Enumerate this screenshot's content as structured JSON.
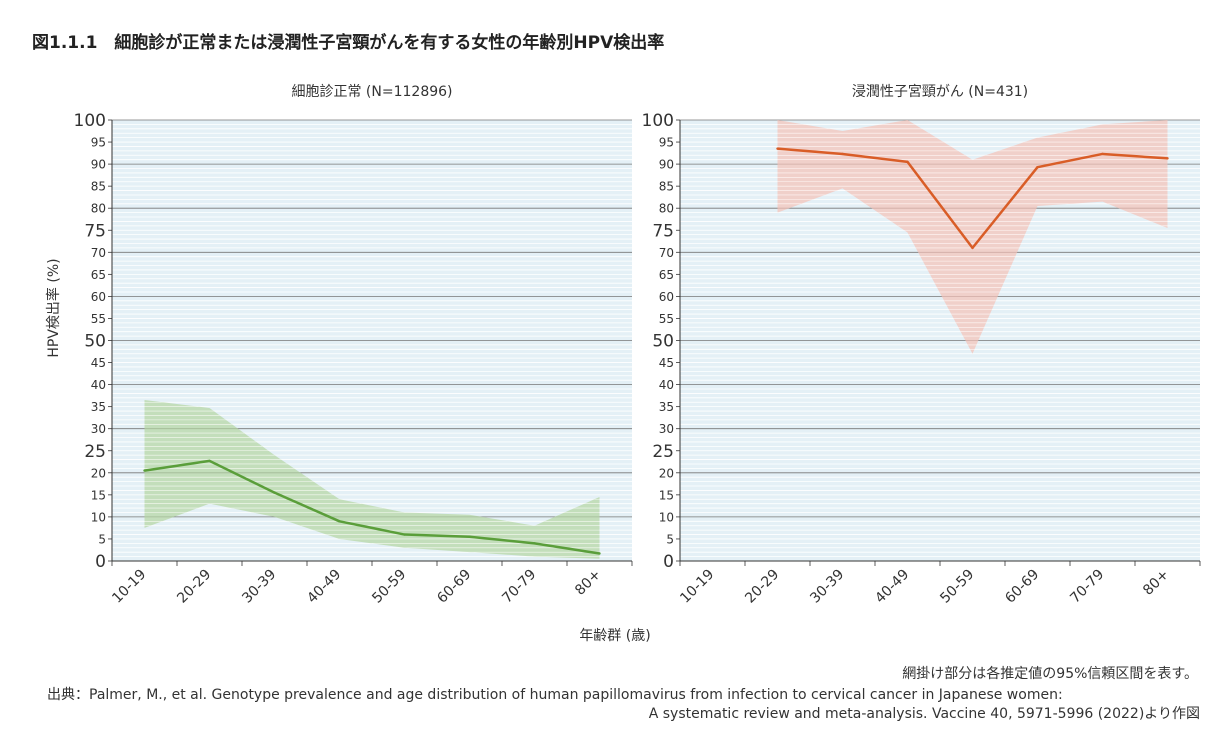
{
  "figure": {
    "title": "図1.1.1　細胞診が正常または浸潤性子宮頸がんを有する女性の年齢別HPV検出率",
    "ylabel": "HPV検出率 (%)",
    "xlabel": "年齢群 (歳)",
    "note": "網掛け部分は各推定値の95%信頼区間を表す。",
    "source_line1": "出典：Palmer, M., et al. Genotype prevalence and age distribution of human papillomavirus from infection to cervical cancer in Japanese women:",
    "source_line2": "A systematic review and meta-analysis. Vaccine 40, 5971-5996 (2022)より作図"
  },
  "colors": {
    "plot_bg": "#e4f0f6",
    "minor_grid": "#ffffff",
    "major_grid": "#777777",
    "normal_line": "#5a9e3a",
    "normal_band": "#b5d5a3",
    "cancer_line": "#d95d27",
    "cancer_band": "#f5c2b8"
  },
  "chart_data": [
    {
      "type": "line",
      "title": "細胞診正常 (N=112896)",
      "categories": [
        "10-19",
        "20-29",
        "30-39",
        "40-49",
        "50-59",
        "60-69",
        "70-79",
        "80+"
      ],
      "ylim": [
        0,
        100
      ],
      "yticks": [
        0,
        5,
        10,
        15,
        20,
        25,
        30,
        35,
        40,
        45,
        50,
        55,
        60,
        65,
        70,
        75,
        80,
        85,
        90,
        95,
        100
      ],
      "grid": true,
      "series": [
        {
          "values": [
            20.5,
            22.7,
            15.5,
            9,
            6,
            5.5,
            4,
            1.7
          ],
          "ci_lower": [
            7.5,
            13,
            10,
            5,
            3,
            2,
            1,
            0.5
          ],
          "ci_upper": [
            36.5,
            34.7,
            24,
            14,
            11,
            10.5,
            8,
            14.5
          ]
        }
      ]
    },
    {
      "type": "line",
      "title": "浸潤性子宮頸がん (N=431)",
      "categories": [
        "10-19",
        "20-29",
        "30-39",
        "40-49",
        "50-59",
        "60-69",
        "70-79",
        "80+"
      ],
      "ylim": [
        0,
        100
      ],
      "yticks": [
        0,
        5,
        10,
        15,
        20,
        25,
        30,
        35,
        40,
        45,
        50,
        55,
        60,
        65,
        70,
        75,
        80,
        85,
        90,
        95,
        100
      ],
      "grid": true,
      "series": [
        {
          "values": [
            null,
            93.5,
            92.3,
            90.5,
            71,
            89.3,
            92.3,
            91.3
          ],
          "ci_lower": [
            null,
            79,
            84.5,
            74.5,
            47,
            80.5,
            81.5,
            75.5
          ],
          "ci_upper": [
            null,
            100,
            97.5,
            100,
            91,
            96,
            99,
            100
          ]
        }
      ]
    }
  ]
}
